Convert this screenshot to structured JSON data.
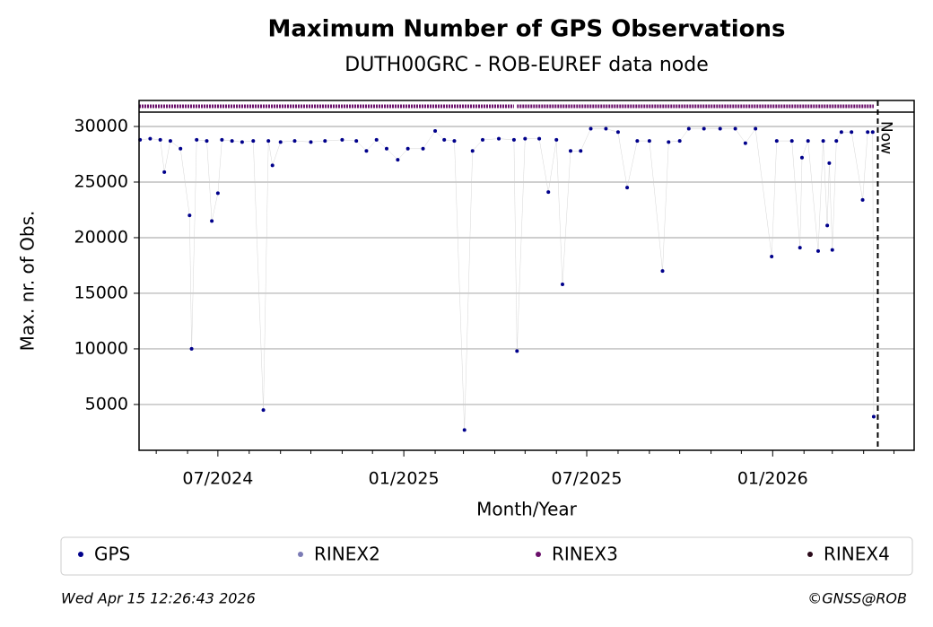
{
  "chart_data": {
    "type": "scatter",
    "title": "Maximum Number of GPS Observations",
    "subtitle": "DUTH00GRC - ROB-EUREF data node",
    "x_label": "Month/Year",
    "y_label": "Max. nr. of Obs.",
    "xlim": [
      "2024-04-14",
      "2026-05-21"
    ],
    "ylim": [
      880,
      31290
    ],
    "xticks": [
      {
        "value": "2024-07-01",
        "label": "07/2024"
      },
      {
        "value": "2025-01-01",
        "label": "01/2025"
      },
      {
        "value": "2025-07-01",
        "label": "07/2025"
      },
      {
        "value": "2026-01-01",
        "label": "01/2026"
      }
    ],
    "xminor_ticks": [
      "2024-05-01",
      "2024-06-01",
      "2024-08-01",
      "2024-09-01",
      "2024-10-01",
      "2024-11-01",
      "2024-12-01",
      "2025-02-01",
      "2025-03-01",
      "2025-04-01",
      "2025-05-01",
      "2025-06-01",
      "2025-08-01",
      "2025-09-01",
      "2025-10-01",
      "2025-11-01",
      "2025-12-01",
      "2026-02-01",
      "2026-03-01",
      "2026-04-01",
      "2026-05-01"
    ],
    "yticks": [
      5000,
      10000,
      15000,
      20000,
      25000,
      30000
    ],
    "grid": true,
    "now": {
      "x": "2026-04-15",
      "label": "Now"
    },
    "series": [
      {
        "name": "GPS",
        "color": "#00008b",
        "x": [
          "2024-04-15",
          "2024-04-25",
          "2024-05-05",
          "2024-05-09",
          "2024-05-15",
          "2024-05-25",
          "2024-06-03",
          "2024-06-05",
          "2024-06-10",
          "2024-06-20",
          "2024-06-25",
          "2024-07-01",
          "2024-07-05",
          "2024-07-15",
          "2024-07-25",
          "2024-08-05",
          "2024-08-15",
          "2024-08-20",
          "2024-08-24",
          "2024-09-01",
          "2024-09-15",
          "2024-10-01",
          "2024-10-15",
          "2024-11-01",
          "2024-11-15",
          "2024-11-25",
          "2024-12-05",
          "2024-12-15",
          "2024-12-26",
          "2025-01-05",
          "2025-01-20",
          "2025-02-01",
          "2025-02-10",
          "2025-02-20",
          "2025-03-02",
          "2025-03-10",
          "2025-03-20",
          "2025-04-05",
          "2025-04-20",
          "2025-04-23",
          "2025-05-01",
          "2025-05-15",
          "2025-05-24",
          "2025-06-01",
          "2025-06-07",
          "2025-06-15",
          "2025-06-25",
          "2025-07-05",
          "2025-07-20",
          "2025-08-01",
          "2025-08-10",
          "2025-08-20",
          "2025-09-01",
          "2025-09-14",
          "2025-09-20",
          "2025-10-01",
          "2025-10-10",
          "2025-10-25",
          "2025-11-10",
          "2025-11-25",
          "2025-12-05",
          "2025-12-15",
          "2025-12-31",
          "2026-01-05",
          "2026-01-20",
          "2026-01-28",
          "2026-01-30",
          "2026-02-05",
          "2026-02-15",
          "2026-02-20",
          "2026-02-24",
          "2026-02-26",
          "2026-03-01",
          "2026-03-05",
          "2026-03-10",
          "2026-03-20",
          "2026-03-31",
          "2026-04-05",
          "2026-04-10",
          "2026-04-11"
        ],
        "values": [
          28800,
          28900,
          28800,
          25900,
          28700,
          28000,
          22000,
          10000,
          28800,
          28700,
          21500,
          24000,
          28800,
          28700,
          28600,
          28700,
          4500,
          28700,
          26500,
          28600,
          28700,
          28600,
          28700,
          28800,
          28700,
          27800,
          28800,
          28000,
          27000,
          28000,
          28000,
          29600,
          28800,
          28700,
          2700,
          27800,
          28800,
          28900,
          28800,
          9800,
          28900,
          28900,
          24100,
          28800,
          15800,
          27800,
          27800,
          29800,
          29800,
          29500,
          24500,
          28700,
          28700,
          17000,
          28600,
          28700,
          29800,
          29800,
          29800,
          29800,
          28500,
          29800,
          18300,
          28700,
          28700,
          19100,
          27200,
          28700,
          18800,
          28700,
          21100,
          26700,
          18900,
          28700,
          29500,
          29500,
          23400,
          29500,
          29500,
          3900
        ]
      },
      {
        "name": "RINEX2",
        "color": "#7b7bb5"
      },
      {
        "name": "RINEX3",
        "color": "#6a0f6a",
        "periods": [
          [
            "2024-04-14",
            "2025-04-20"
          ],
          [
            "2025-04-23",
            "2026-04-11"
          ]
        ]
      },
      {
        "name": "RINEX4",
        "color": "#2a0a1a"
      }
    ],
    "footer_left": "Wed Apr 15 12:26:43 2026",
    "footer_right": "©GNSS@ROB"
  }
}
